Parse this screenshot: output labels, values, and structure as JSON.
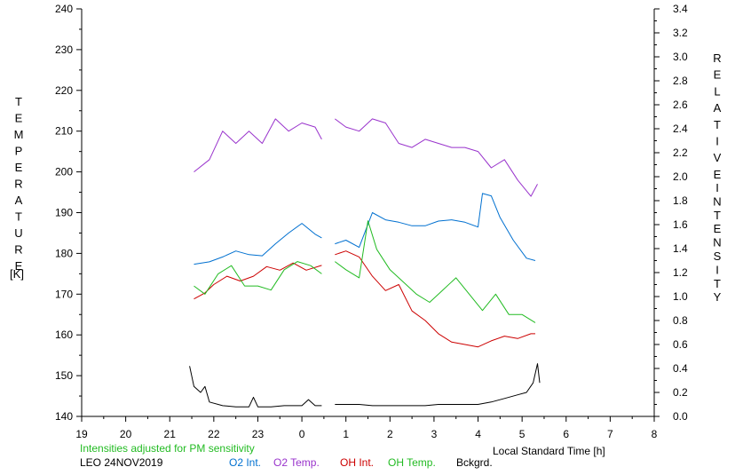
{
  "chart_data": {
    "type": "line",
    "left_axis": {
      "label_letters": [
        "T",
        "E",
        "M",
        "P",
        "E",
        "R",
        "A",
        "T",
        "U",
        "R",
        "E"
      ],
      "unit": "[K]",
      "ylim": [
        140,
        240
      ],
      "ticks": [
        "140",
        "150",
        "160",
        "170",
        "180",
        "190",
        "200",
        "210",
        "220",
        "230",
        "240"
      ]
    },
    "right_axis": {
      "label_letters_1": [
        "R",
        "E",
        "L",
        "A",
        "T",
        "I",
        "V",
        "E"
      ],
      "label_letters_2": [
        "I",
        "N",
        "T",
        "E",
        "N",
        "S",
        "I",
        "T",
        "Y"
      ],
      "ylim": [
        0.0,
        3.4
      ],
      "ticks": [
        "0.0",
        "0.2",
        "0.4",
        "0.6",
        "0.8",
        "1.0",
        "1.2",
        "1.4",
        "1.6",
        "1.8",
        "2.0",
        "2.2",
        "2.4",
        "2.6",
        "2.8",
        "3.0",
        "3.2",
        "3.4"
      ]
    },
    "x_axis": {
      "label": "Local Standard Time [h]",
      "xlim": [
        19,
        32
      ],
      "ticks": [
        "19",
        "20",
        "21",
        "22",
        "23",
        "0",
        "1",
        "2",
        "3",
        "4",
        "5",
        "6",
        "7",
        "8"
      ]
    },
    "note": "Intensities adjusted for PM sensitivity",
    "station": "LEO 24NOV2019",
    "legend": [
      {
        "key": "o2_int",
        "label": "O2 Int.",
        "color": "#0070d0"
      },
      {
        "key": "o2_temp",
        "label": "O2 Temp.",
        "color": "#9933cc"
      },
      {
        "key": "oh_int",
        "label": "OH Int.",
        "color": "#cc0000"
      },
      {
        "key": "oh_temp",
        "label": "OH Temp.",
        "color": "#22bb22"
      },
      {
        "key": "bckgrd",
        "label": "Bckgrd.",
        "color": "#000000"
      }
    ],
    "note_color": "#22bb22",
    "series": [
      {
        "key": "o2_temp",
        "axis": "left",
        "segments": [
          {
            "x": [
              21.55,
              21.9,
              22.2,
              22.5,
              22.8,
              23.1,
              23.4,
              23.7,
              24.0,
              24.3,
              24.45
            ],
            "y": [
              200,
              203,
              210,
              207,
              210,
              207,
              213,
              210,
              212,
              211,
              208
            ]
          },
          {
            "x": [
              24.75,
              25.0,
              25.3,
              25.6,
              25.9,
              26.2,
              26.5,
              26.8,
              27.1,
              27.4,
              27.7,
              28.0,
              28.3,
              28.6,
              28.9,
              29.2,
              29.35
            ],
            "y": [
              213,
              211,
              210,
              213,
              212,
              207,
              206,
              208,
              207,
              206,
              206,
              205,
              201,
              203,
              198,
              194,
              197
            ]
          }
        ]
      },
      {
        "key": "o2_int",
        "axis": "right",
        "segments": [
          {
            "x": [
              21.55,
              21.9,
              22.2,
              22.5,
              22.8,
              23.1,
              23.4,
              23.7,
              24.0,
              24.3,
              24.45
            ],
            "y": [
              1.27,
              1.29,
              1.33,
              1.38,
              1.35,
              1.34,
              1.44,
              1.53,
              1.61,
              1.52,
              1.49
            ]
          },
          {
            "x": [
              24.75,
              25.0,
              25.3,
              25.6,
              25.9,
              26.2,
              26.5,
              26.8,
              27.1,
              27.4,
              27.7,
              28.0,
              28.1,
              28.3,
              28.5,
              28.8,
              29.1,
              29.3
            ],
            "y": [
              1.44,
              1.47,
              1.41,
              1.7,
              1.64,
              1.62,
              1.59,
              1.59,
              1.63,
              1.64,
              1.62,
              1.58,
              1.86,
              1.84,
              1.66,
              1.47,
              1.32,
              1.3
            ]
          }
        ]
      },
      {
        "key": "oh_int",
        "axis": "right",
        "segments": [
          {
            "x": [
              21.55,
              21.8,
              22.0,
              22.3,
              22.6,
              22.9,
              23.2,
              23.5,
              23.8,
              24.1,
              24.45
            ],
            "y": [
              0.98,
              1.03,
              1.1,
              1.17,
              1.13,
              1.17,
              1.25,
              1.22,
              1.28,
              1.22,
              1.26
            ]
          },
          {
            "x": [
              24.75,
              25.0,
              25.3,
              25.6,
              25.9,
              26.2,
              26.5,
              26.8,
              27.1,
              27.4,
              27.7,
              28.0,
              28.3,
              28.6,
              28.9,
              29.2,
              29.3
            ],
            "y": [
              1.35,
              1.38,
              1.33,
              1.17,
              1.05,
              1.1,
              0.88,
              0.8,
              0.69,
              0.62,
              0.6,
              0.58,
              0.63,
              0.67,
              0.65,
              0.69,
              0.69
            ]
          }
        ]
      },
      {
        "key": "oh_temp",
        "axis": "left",
        "segments": [
          {
            "x": [
              21.55,
              21.8,
              22.1,
              22.4,
              22.7,
              23.0,
              23.3,
              23.6,
              23.9,
              24.2,
              24.45
            ],
            "y": [
              172,
              170,
              175,
              177,
              172,
              172,
              171,
              176,
              178,
              177,
              175
            ]
          },
          {
            "x": [
              24.75,
              25.0,
              25.3,
              25.5,
              25.7,
              26.0,
              26.3,
              26.6,
              26.9,
              27.2,
              27.5,
              27.8,
              28.1,
              28.4,
              28.7,
              29.0,
              29.3
            ],
            "y": [
              178,
              176,
              174,
              188,
              181,
              176,
              173,
              170,
              168,
              171,
              174,
              170,
              166,
              170,
              165,
              165,
              163
            ]
          }
        ]
      },
      {
        "key": "bckgrd",
        "axis": "right",
        "segments": [
          {
            "x": [
              21.45,
              21.55,
              21.7,
              21.8,
              21.9,
              22.2,
              22.5,
              22.8,
              22.9,
              23.0,
              23.3,
              23.6,
              24.0,
              24.15,
              24.3,
              24.45
            ],
            "y": [
              0.42,
              0.25,
              0.2,
              0.25,
              0.12,
              0.09,
              0.08,
              0.08,
              0.16,
              0.08,
              0.08,
              0.09,
              0.09,
              0.14,
              0.09,
              0.09
            ]
          },
          {
            "x": [
              24.75,
              25.0,
              25.3,
              25.6,
              25.9,
              26.2,
              26.5,
              26.8,
              27.1,
              27.4,
              27.7,
              28.0,
              28.3,
              28.6,
              28.9,
              29.1,
              29.25,
              29.35,
              29.4
            ],
            "y": [
              0.1,
              0.1,
              0.1,
              0.09,
              0.09,
              0.09,
              0.09,
              0.09,
              0.1,
              0.1,
              0.1,
              0.1,
              0.12,
              0.15,
              0.18,
              0.2,
              0.28,
              0.44,
              0.28
            ]
          }
        ]
      }
    ]
  }
}
